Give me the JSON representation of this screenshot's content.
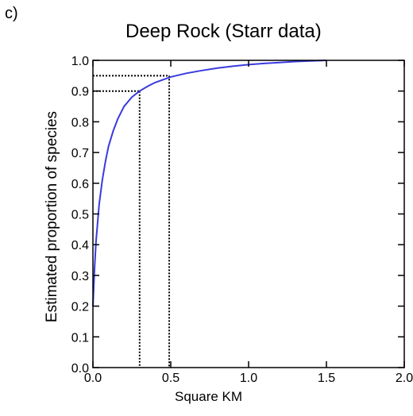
{
  "panel_label": "c)",
  "chart_data": {
    "type": "line",
    "title": "Deep Rock (Starr data)",
    "xlabel": "Square KM",
    "ylabel": "Estimated proportion of species",
    "xlim": [
      0,
      2.0
    ],
    "ylim": [
      0,
      1.0
    ],
    "x_ticks": [
      "0.0",
      "0.5",
      "1.0",
      "1.5",
      "2.0"
    ],
    "x_tick_values": [
      0,
      0.5,
      1.0,
      1.5,
      2.0
    ],
    "y_ticks": [
      "0.0",
      "0.1",
      "0.2",
      "0.3",
      "0.4",
      "0.5",
      "0.6",
      "0.7",
      "0.8",
      "0.9",
      "1.0"
    ],
    "y_tick_values": [
      0,
      0.1,
      0.2,
      0.3,
      0.4,
      0.5,
      0.6,
      0.7,
      0.8,
      0.9,
      1.0
    ],
    "grid": false,
    "series": [
      {
        "color": "#3a3adf",
        "x": [
          0.0,
          0.01,
          0.02,
          0.04,
          0.06,
          0.08,
          0.1,
          0.13,
          0.16,
          0.2,
          0.25,
          0.3,
          0.35,
          0.4,
          0.5,
          0.6,
          0.7,
          0.8,
          0.9,
          1.0,
          1.1,
          1.2,
          1.3,
          1.4,
          1.5
        ],
        "y": [
          0.2,
          0.32,
          0.41,
          0.53,
          0.61,
          0.67,
          0.72,
          0.77,
          0.81,
          0.85,
          0.88,
          0.9,
          0.915,
          0.928,
          0.946,
          0.958,
          0.967,
          0.975,
          0.981,
          0.986,
          0.99,
          0.993,
          0.996,
          0.998,
          1.0
        ]
      }
    ],
    "reference_lines": [
      {
        "x": 0.3,
        "y": 0.9
      },
      {
        "x": 0.49,
        "y": 0.95
      }
    ]
  }
}
